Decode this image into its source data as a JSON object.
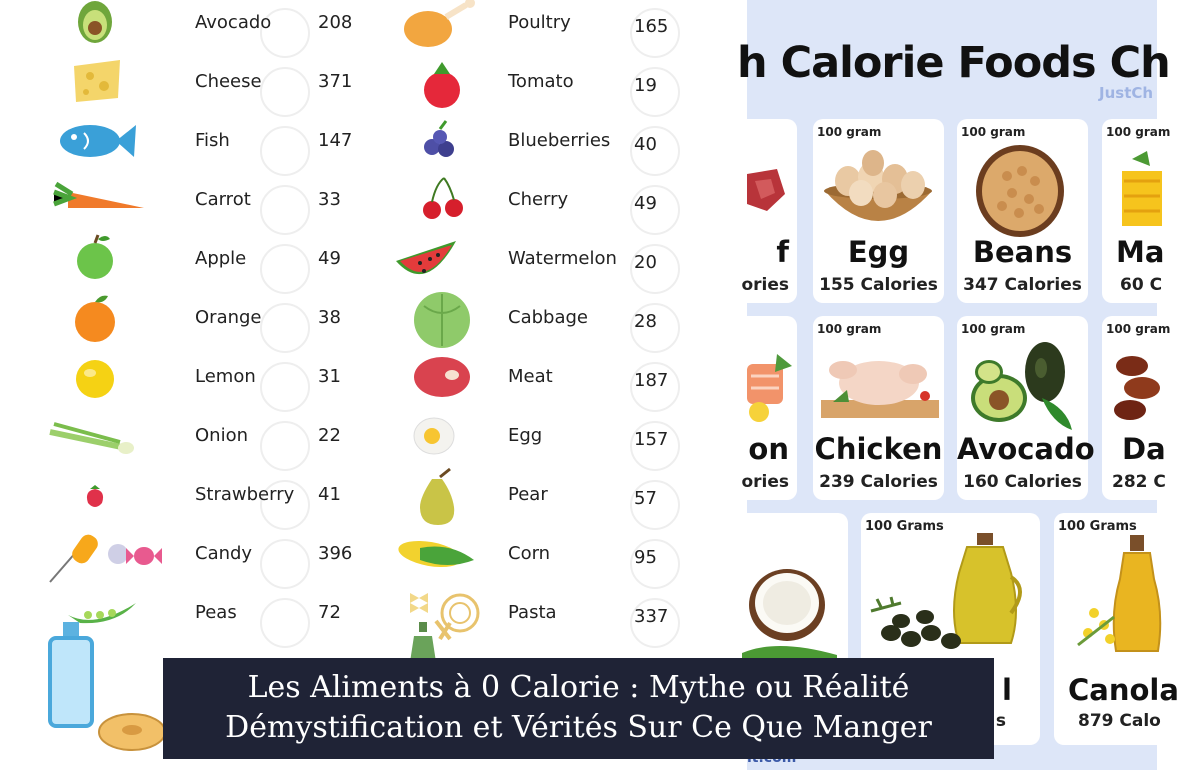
{
  "food_list": {
    "left_column": [
      {
        "name": "Avocado",
        "calories": "208",
        "icon": "avocado-icon",
        "color": "#6fa63b"
      },
      {
        "name": "Cheese",
        "calories": "371",
        "icon": "cheese-icon",
        "color": "#f4d56a"
      },
      {
        "name": "Fish",
        "calories": "147",
        "icon": "fish-icon",
        "color": "#3aa0d8"
      },
      {
        "name": "Carrot",
        "calories": "33",
        "icon": "carrot-icon",
        "color": "#f07a2b"
      },
      {
        "name": "Apple",
        "calories": "49",
        "icon": "apple-icon",
        "color": "#6cc44a"
      },
      {
        "name": "Orange",
        "calories": "38",
        "icon": "orange-icon",
        "color": "#f58a1f"
      },
      {
        "name": "Lemon",
        "calories": "31",
        "icon": "lemon-icon",
        "color": "#f5d214"
      },
      {
        "name": "Onion",
        "calories": "22",
        "icon": "onion-icon",
        "color": "#9ccf6b"
      },
      {
        "name": "Strawberry",
        "calories": "41",
        "icon": "strawberry-icon",
        "color": "#e0314a"
      },
      {
        "name": "Candy",
        "calories": "396",
        "icon": "candy-icon",
        "color": "#e85a8f"
      },
      {
        "name": "Peas",
        "calories": "72",
        "icon": "peas-icon",
        "color": "#59b248"
      }
    ],
    "right_column": [
      {
        "name": "Poultry",
        "calories": "165",
        "icon": "poultry-icon",
        "color": "#f2a640"
      },
      {
        "name": "Tomato",
        "calories": "19",
        "icon": "tomato-icon",
        "color": "#e5283a"
      },
      {
        "name": "Blueberries",
        "calories": "40",
        "icon": "blueberries-icon",
        "color": "#4e4fa6"
      },
      {
        "name": "Cherry",
        "calories": "49",
        "icon": "cherry-icon",
        "color": "#d61f2c"
      },
      {
        "name": "Watermelon",
        "calories": "20",
        "icon": "watermelon-icon",
        "color": "#e33b3b"
      },
      {
        "name": "Cabbage",
        "calories": "28",
        "icon": "cabbage-icon",
        "color": "#8fca6a"
      },
      {
        "name": "Meat",
        "calories": "187",
        "icon": "meat-icon",
        "color": "#d9434f"
      },
      {
        "name": "Egg",
        "calories": "157",
        "icon": "egg-icon",
        "color": "#f7c531"
      },
      {
        "name": "Pear",
        "calories": "57",
        "icon": "pear-icon",
        "color": "#c9c447"
      },
      {
        "name": "Corn",
        "calories": "95",
        "icon": "corn-icon",
        "color": "#f2d22e"
      },
      {
        "name": "Pasta",
        "calories": "337",
        "icon": "pasta-icon",
        "color": "#e8c36d"
      }
    ]
  },
  "calorie_chart": {
    "title": "h Calorie Foods Ch",
    "brand": "JustCh",
    "footer_url": "it.com",
    "cards": [
      {
        "unit": "",
        "name": "f",
        "calories": "ories"
      },
      {
        "unit": "100 gram",
        "name": "Egg",
        "calories": "155 Calories"
      },
      {
        "unit": "100 gram",
        "name": "Beans",
        "calories": "347 Calories"
      },
      {
        "unit": "100 gram",
        "name": "Ma",
        "calories": "60 C"
      },
      {
        "unit": "",
        "name": "on",
        "calories": "ories"
      },
      {
        "unit": "100 gram",
        "name": "Chicken",
        "calories": "239 Calories"
      },
      {
        "unit": "100 gram",
        "name": "Avocado",
        "calories": "160 Calories"
      },
      {
        "unit": "100 gram",
        "name": "Da",
        "calories": "282 C"
      },
      {
        "unit": "",
        "name": "",
        "calories": ""
      },
      {
        "unit": "100 Grams",
        "name": "l",
        "calories": "s"
      },
      {
        "unit": "100 Grams",
        "name": "Canola",
        "calories": "879 Calo"
      }
    ]
  },
  "banner": {
    "line1": "Les Aliments à 0 Calorie : Mythe ou Réalité",
    "line2": "Démystification et Vérités Sur Ce Que Manger"
  }
}
